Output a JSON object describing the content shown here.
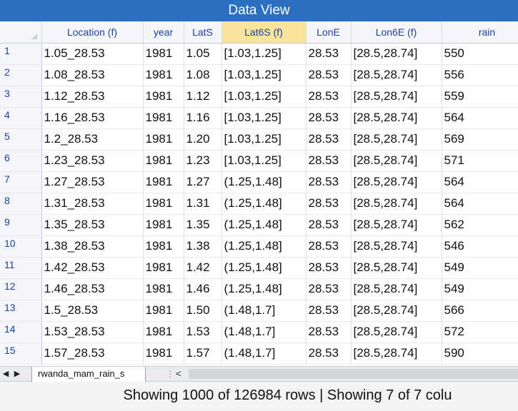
{
  "window": {
    "title": "Data View"
  },
  "grid": {
    "columns": [
      {
        "label": "Location (f)",
        "selected": false
      },
      {
        "label": "year",
        "selected": false
      },
      {
        "label": "LatS",
        "selected": false
      },
      {
        "label": "Lat6S (f)",
        "selected": true
      },
      {
        "label": "LonE",
        "selected": false
      },
      {
        "label": "Lon6E (f)",
        "selected": false
      },
      {
        "label": "rain",
        "selected": false
      }
    ],
    "rows": [
      {
        "n": "1",
        "cells": [
          "1.05_28.53",
          "1981",
          "1.05",
          "[1.03,1.25]",
          "28.53",
          "[28.5,28.74]",
          "550"
        ]
      },
      {
        "n": "2",
        "cells": [
          "1.08_28.53",
          "1981",
          "1.08",
          "[1.03,1.25]",
          "28.53",
          "[28.5,28.74]",
          "556"
        ]
      },
      {
        "n": "3",
        "cells": [
          "1.12_28.53",
          "1981",
          "1.12",
          "[1.03,1.25]",
          "28.53",
          "[28.5,28.74]",
          "559"
        ]
      },
      {
        "n": "4",
        "cells": [
          "1.16_28.53",
          "1981",
          "1.16",
          "[1.03,1.25]",
          "28.53",
          "[28.5,28.74]",
          "564"
        ]
      },
      {
        "n": "5",
        "cells": [
          "1.2_28.53",
          "1981",
          "1.20",
          "[1.03,1.25]",
          "28.53",
          "[28.5,28.74]",
          "569"
        ]
      },
      {
        "n": "6",
        "cells": [
          "1.23_28.53",
          "1981",
          "1.23",
          "[1.03,1.25]",
          "28.53",
          "[28.5,28.74]",
          "571"
        ]
      },
      {
        "n": "7",
        "cells": [
          "1.27_28.53",
          "1981",
          "1.27",
          "(1.25,1.48]",
          "28.53",
          "[28.5,28.74]",
          "564"
        ]
      },
      {
        "n": "8",
        "cells": [
          "1.31_28.53",
          "1981",
          "1.31",
          "(1.25,1.48]",
          "28.53",
          "[28.5,28.74]",
          "564"
        ]
      },
      {
        "n": "9",
        "cells": [
          "1.35_28.53",
          "1981",
          "1.35",
          "(1.25,1.48]",
          "28.53",
          "[28.5,28.74]",
          "562"
        ]
      },
      {
        "n": "10",
        "cells": [
          "1.38_28.53",
          "1981",
          "1.38",
          "(1.25,1.48]",
          "28.53",
          "[28.5,28.74]",
          "546"
        ]
      },
      {
        "n": "11",
        "cells": [
          "1.42_28.53",
          "1981",
          "1.42",
          "(1.25,1.48]",
          "28.53",
          "[28.5,28.74]",
          "549"
        ]
      },
      {
        "n": "12",
        "cells": [
          "1.46_28.53",
          "1981",
          "1.46",
          "(1.25,1.48]",
          "28.53",
          "[28.5,28.74]",
          "549"
        ]
      },
      {
        "n": "13",
        "cells": [
          "1.5_28.53",
          "1981",
          "1.50",
          "(1.48,1.7]",
          "28.53",
          "[28.5,28.74]",
          "566"
        ]
      },
      {
        "n": "14",
        "cells": [
          "1.53_28.53",
          "1981",
          "1.53",
          "(1.48,1.7]",
          "28.53",
          "[28.5,28.74]",
          "572"
        ]
      },
      {
        "n": "15",
        "cells": [
          "1.57_28.53",
          "1981",
          "1.57",
          "(1.48,1.7]",
          "28.53",
          "[28.5,28.74]",
          "590"
        ]
      }
    ]
  },
  "sheet_tabs": {
    "prev_icon": "triangle-left-icon",
    "next_icon": "triangle-right-icon",
    "prev_glyph": "◀",
    "next_glyph": "▶",
    "active_label": "rwanda_mam_rain_s",
    "splitter_glyph": "⋮",
    "scroll_left_glyph": "<"
  },
  "status": {
    "text": "Showing 1000 of 126984 rows | Showing 7 of 7 colu"
  },
  "colors": {
    "title_bar": "#2b6fc0",
    "header_text": "#1f3f9a",
    "selected_header": "#f8e39a"
  }
}
